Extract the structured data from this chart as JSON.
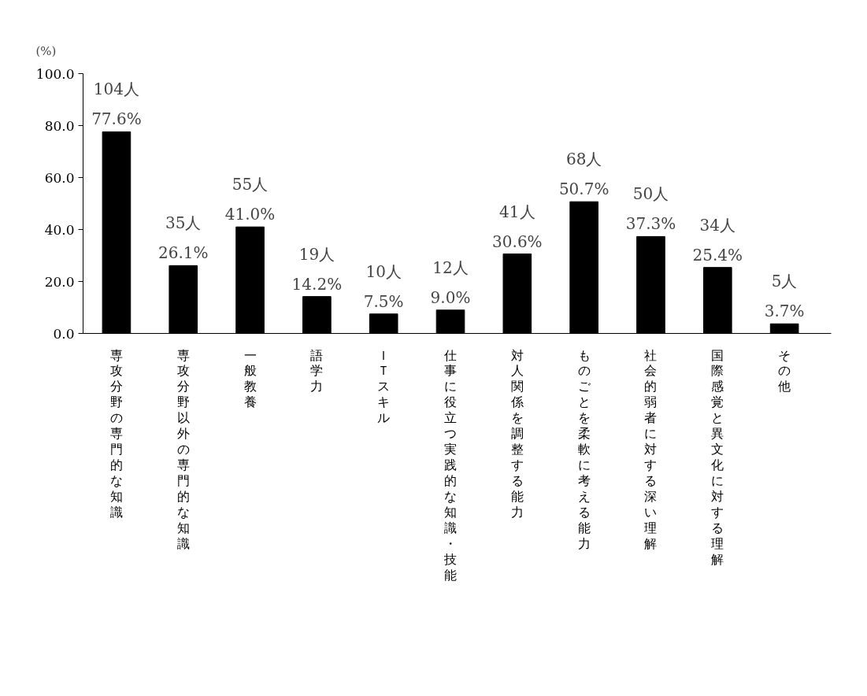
{
  "chart_data": {
    "type": "bar",
    "ylabel": "(%)",
    "categories": [
      "専攻分野の専門的な知識",
      "専攻分野以外の専門的な知識",
      "一般教養",
      "語学力",
      "ＩＴスキル",
      "仕事に役立つ実践的な知識・技能",
      "対人関係を調整する能力",
      "ものごとを柔軟に考える能力",
      "社会的弱者に対する深い理解",
      "国際感覚と異文化に対する理解",
      "その他"
    ],
    "values": [
      77.6,
      26.1,
      41.0,
      14.2,
      7.5,
      9.0,
      30.6,
      50.7,
      37.3,
      25.4,
      3.7
    ],
    "value_labels": [
      "77.6%",
      "26.1%",
      "41.0%",
      "14.2%",
      "7.5%",
      "9.0%",
      "30.6%",
      "50.7%",
      "37.3%",
      "25.4%",
      "3.7%"
    ],
    "color": "#000000",
    "ylim": [
      0,
      100
    ],
    "yticks": [
      {
        "value": 0,
        "label": "0.0"
      },
      {
        "value": 20,
        "label": "20.0"
      },
      {
        "value": 40,
        "label": "40.0"
      },
      {
        "value": 60,
        "label": "60.0"
      },
      {
        "value": 80,
        "label": "80.0"
      },
      {
        "value": 100,
        "label": "100.0"
      }
    ],
    "grid": false,
    "annotations": [
      {
        "text": "104人",
        "x": "専攻分野の専門的な知識",
        "y": 77.6
      },
      {
        "text": "35人",
        "x": "専攻分野以外の専門的な知識",
        "y": 26.1
      },
      {
        "text": "55人",
        "x": "一般教養",
        "y": 41.0
      },
      {
        "text": "19人",
        "x": "語学力",
        "y": 14.2
      },
      {
        "text": "10人",
        "x": "ＩＴスキル",
        "y": 7.5
      },
      {
        "text": "12人",
        "x": "仕事に役立つ実践的な知識・技能",
        "y": 9.0
      },
      {
        "text": "41人",
        "x": "対人関係を調整する能力",
        "y": 30.6
      },
      {
        "text": "68人",
        "x": "ものごとを柔軟に考える能力",
        "y": 50.7
      },
      {
        "text": "50人",
        "x": "社会的弱者に対する深い理解",
        "y": 37.3
      },
      {
        "text": "34人",
        "x": "国際感覚と異文化に対する理解",
        "y": 25.4
      },
      {
        "text": "5人",
        "x": "その他",
        "y": 3.7
      }
    ]
  }
}
